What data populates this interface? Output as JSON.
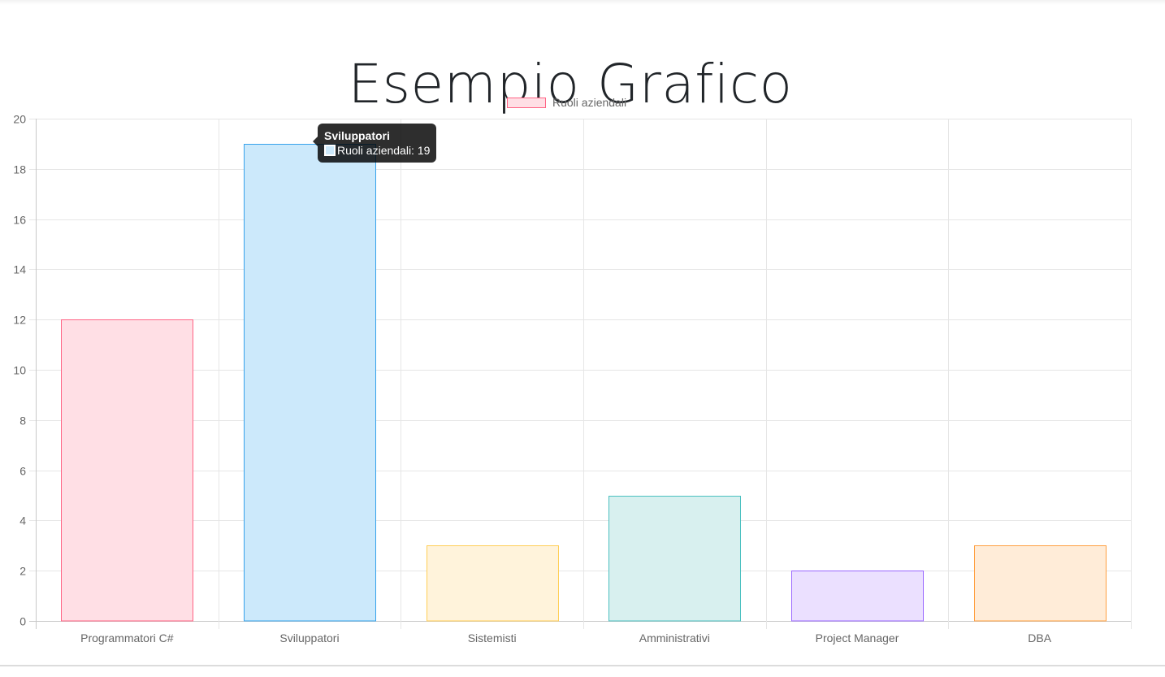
{
  "page": {
    "title": "Esempio Grafico"
  },
  "chart_data": {
    "type": "bar",
    "categories": [
      "Programmatori C#",
      "Sviluppatori",
      "Sistemisti",
      "Amministrativi",
      "Project Manager",
      "DBA"
    ],
    "series": [
      {
        "name": "Ruoli aziendali",
        "values": [
          12,
          19,
          3,
          5,
          2,
          3
        ]
      }
    ],
    "ylim": [
      0,
      20
    ],
    "yticks": [
      0,
      2,
      4,
      6,
      8,
      10,
      12,
      14,
      16,
      18,
      20
    ],
    "grid": true,
    "legend_position": "top",
    "colors": {
      "fill": [
        "#ffdfe5",
        "#cce9fb",
        "#fff3db",
        "#d8f0ef",
        "#ebe0ff",
        "#ffecd8"
      ],
      "border": [
        "#ff6384",
        "#36a2eb",
        "#ffce56",
        "#4bc0c0",
        "#9966ff",
        "#ff9f40"
      ]
    },
    "tooltip": {
      "title": "Sviluppatori",
      "label": "Ruoli aziendali: 19",
      "swatch_color": "#cce9fb"
    }
  }
}
